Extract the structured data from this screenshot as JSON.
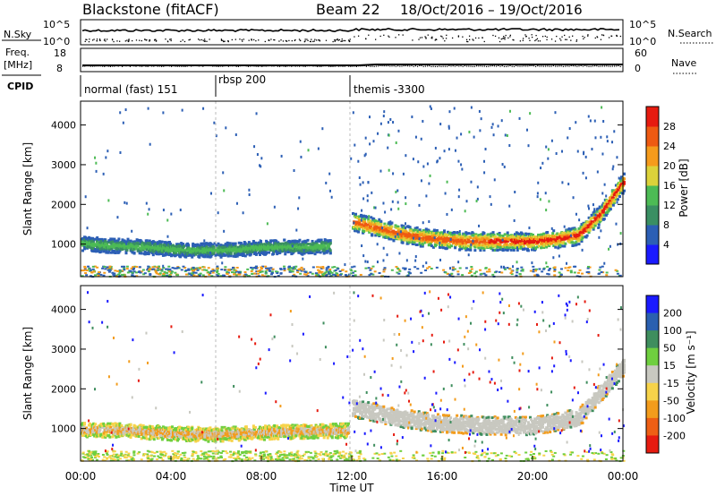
{
  "header": {
    "station": "Blackstone (fitACF)",
    "beam": "Beam 22",
    "dates": "18/Oct/2016 – 19/Oct/2016"
  },
  "top_panels": {
    "nsky_label": "N.Sky",
    "nsearch_label": "N.Search",
    "nsky_ticks": [
      "10^5",
      "10^0"
    ],
    "nsearch_ticks": [
      "10^5",
      "10^0"
    ],
    "freq_label_line1": "Freq.",
    "freq_label_line2": "[MHz]",
    "freq_ticks": [
      "18",
      "8"
    ],
    "nave_label": "Nave",
    "nave_ticks": [
      "60",
      "0"
    ],
    "cpid_label": "CPID",
    "modes": [
      {
        "label": "normal (fast) 151",
        "start_hr": 0
      },
      {
        "label": "rbsp 200",
        "start_hr": 6
      },
      {
        "label": "themis -3300",
        "start_hr": 12
      }
    ]
  },
  "colors": {
    "power": [
      "#1a1aff",
      "#2c5fb5",
      "#3a8f63",
      "#4dbb55",
      "#dcd23a",
      "#f59b1c",
      "#ee5a12",
      "#e61b10"
    ],
    "velocity": [
      "#1a1aff",
      "#2a60b0",
      "#3f8e5e",
      "#6fcf3f",
      "#c8c8c0",
      "#f7d34a",
      "#f39c1c",
      "#ee5f14",
      "#e61b10"
    ],
    "mode_line": "#b5b5b5"
  },
  "chart_data": [
    {
      "type": "heatmap",
      "title": "Power",
      "xlabel": "",
      "ylabel": "Slant Range [km]",
      "xlim_hr": [
        0,
        24
      ],
      "ylim": [
        180,
        4600
      ],
      "yticks": [
        1000,
        2000,
        3000,
        4000
      ],
      "colorbar": {
        "label": "Power [dB]",
        "ticks": [
          4,
          8,
          12,
          16,
          20,
          24,
          28
        ],
        "range": [
          0,
          32
        ]
      },
      "scatter_bands": [
        {
          "x": [
            0.0,
            1.0,
            2.0,
            3.0,
            4.0,
            5.0,
            6.0,
            7.0,
            8.0,
            9.0,
            10.0,
            11.0
          ],
          "range_km": [
            1050,
            1000,
            980,
            950,
            900,
            870,
            880,
            900,
            950,
            960,
            950,
            980
          ],
          "level_db": 12
        },
        {
          "x": [
            12.0,
            13.0,
            14.0,
            15.0,
            16.0,
            17.0,
            18.0,
            19.0,
            20.0,
            21.0,
            22.0,
            23.0,
            24.0
          ],
          "range_km": [
            1600,
            1450,
            1300,
            1200,
            1150,
            1100,
            1100,
            1100,
            1100,
            1150,
            1250,
            1800,
            2600
          ],
          "level_db": 22
        }
      ]
    },
    {
      "type": "heatmap",
      "title": "Velocity",
      "xlabel": "Time UT",
      "ylabel": "Slant Range [km]",
      "xlim_hr": [
        0,
        24
      ],
      "ylim": [
        180,
        4600
      ],
      "yticks": [
        1000,
        2000,
        3000,
        4000
      ],
      "xticks": [
        "00:00",
        "04:00",
        "08:00",
        "12:00",
        "16:00",
        "20:00",
        "00:00"
      ],
      "colorbar": {
        "label": "Velocity [m s⁻¹]",
        "ticks": [
          200,
          100,
          50,
          15,
          -15,
          -50,
          -100,
          -200
        ]
      },
      "scatter_bands": [
        {
          "x": [
            0.0,
            2.0,
            4.0,
            6.0,
            8.0,
            10.0,
            11.8
          ],
          "range_km": [
            1000,
            980,
            900,
            880,
            930,
            960,
            980
          ],
          "velocity": -40
        },
        {
          "x": [
            12.0,
            14.0,
            16.0,
            18.0,
            20.0,
            22.0,
            24.0
          ],
          "range_km": [
            1550,
            1300,
            1150,
            1100,
            1100,
            1300,
            2600
          ],
          "velocity": 0
        }
      ]
    }
  ]
}
